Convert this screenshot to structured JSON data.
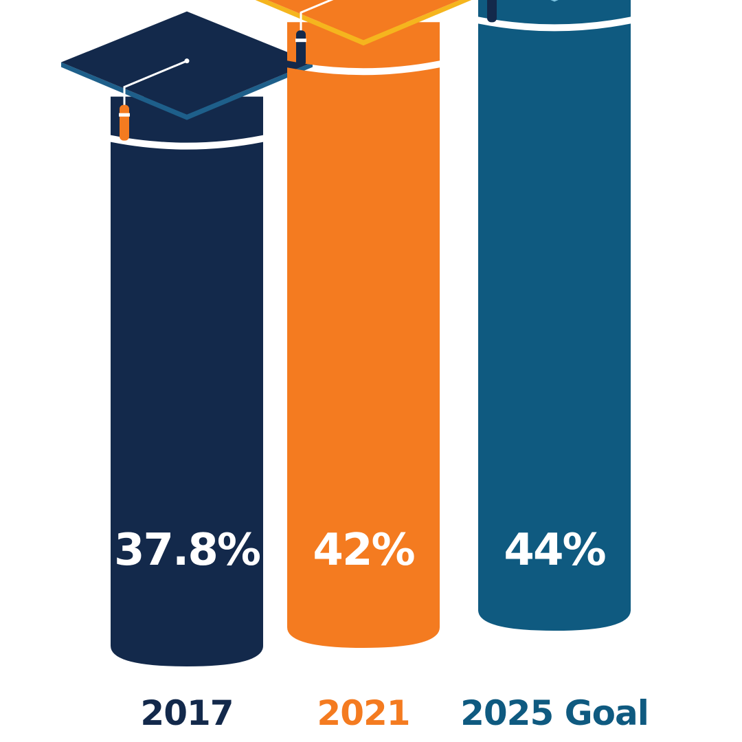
{
  "chart_data": {
    "type": "bar",
    "categories": [
      "2017",
      "2021",
      "2025 Goal"
    ],
    "values": [
      37.8,
      42,
      44
    ],
    "value_labels": [
      "37.8%",
      "42%",
      "44%"
    ],
    "title": "",
    "xlabel": "",
    "ylabel": "",
    "grid": false,
    "legend": "none",
    "colors": {
      "2017": "#13294b",
      "2021": "#f47b20",
      "2025 Goal": "#0f5a80"
    },
    "cap_edge_colors": {
      "2017": "#1e5f8a",
      "2021": "#f5b51e",
      "2025 Goal": "#7cc4e2"
    },
    "tassel_colors": {
      "2017": "#f47b20",
      "2021": "#13294b",
      "2025 Goal": "#13294b"
    },
    "label_colors": {
      "2017": "#13294b",
      "2021": "#f47b20",
      "2025 Goal": "#0f5a80"
    },
    "decoration": "graduation-cap"
  }
}
